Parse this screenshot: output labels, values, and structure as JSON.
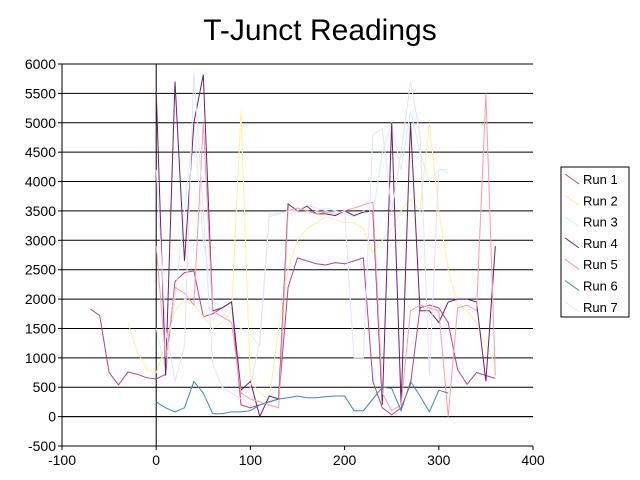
{
  "chart_data": {
    "type": "line",
    "title": "T-Junct Readings",
    "xlabel": "",
    "ylabel": "",
    "xlim": [
      -100,
      400
    ],
    "ylim": [
      -500,
      6000
    ],
    "x_ticks": [
      -100,
      0,
      100,
      200,
      300,
      400
    ],
    "y_ticks": [
      -500,
      0,
      500,
      1000,
      1500,
      2000,
      2500,
      3000,
      3500,
      4000,
      4500,
      5000,
      5500,
      6000
    ],
    "grid": "horizontal",
    "legend_position": "right",
    "series": [
      {
        "name": "Run 1",
        "color": "#c04080",
        "x": [
          -70,
          -60,
          -50,
          -40,
          -30,
          -20,
          -10,
          0,
          10,
          20,
          30,
          40,
          50,
          60,
          70,
          80,
          90,
          100,
          110,
          120,
          130,
          140,
          150,
          160,
          170,
          180,
          190,
          200,
          210,
          220,
          230,
          240,
          250,
          260,
          270,
          280,
          290,
          300,
          310,
          320,
          330,
          340,
          350,
          360
        ],
        "y": [
          1830,
          1720,
          750,
          540,
          760,
          720,
          660,
          640,
          720,
          2300,
          2450,
          2480,
          1700,
          1750,
          1850,
          1950,
          200,
          150,
          200,
          250,
          300,
          2200,
          2700,
          2650,
          2600,
          2580,
          2620,
          2600,
          2650,
          2700,
          600,
          150,
          30,
          150,
          550,
          1850,
          1900,
          1850,
          1600,
          800,
          550,
          750,
          700,
          650
        ]
      },
      {
        "name": "Run 2",
        "color": "#fff0a0",
        "x": [
          -30,
          -20,
          -10,
          0,
          10,
          20,
          30,
          40,
          50,
          60,
          70,
          80,
          90,
          100,
          110,
          120,
          130,
          140,
          150,
          160,
          170,
          180,
          190,
          200,
          210,
          220,
          230,
          240,
          250,
          260,
          270,
          280,
          290,
          300,
          310,
          320,
          330,
          340,
          350,
          360
        ],
        "y": [
          1600,
          1100,
          800,
          750,
          1200,
          1800,
          2000,
          1900,
          1700,
          1500,
          1600,
          1800,
          5200,
          600,
          400,
          300,
          1500,
          2500,
          3000,
          3200,
          3300,
          3400,
          3350,
          3300,
          3300,
          3200,
          2800,
          3000,
          3200,
          3500,
          3700,
          3500,
          5000,
          3500,
          2500,
          1900,
          1800,
          1600,
          1200,
          900
        ]
      },
      {
        "name": "Run 3",
        "color": "#d8f0f8",
        "x": [
          0,
          10,
          20,
          30,
          40,
          50,
          60,
          70,
          80,
          90,
          100,
          110,
          120,
          130,
          140,
          150,
          160,
          170,
          180,
          190,
          200,
          210,
          220,
          230,
          240,
          250,
          260,
          270,
          280,
          290,
          300,
          310
        ],
        "y": [
          1500,
          800,
          2000,
          3500,
          5000,
          3000,
          2000,
          1800,
          1600,
          1500,
          1400,
          1200,
          3400,
          3450,
          3500,
          3480,
          3450,
          3500,
          3550,
          3500,
          3450,
          3400,
          3500,
          3450,
          4500,
          5000,
          4200,
          5200,
          4500,
          4000,
          4200,
          4150
        ]
      },
      {
        "name": "Run 4",
        "color": "#6a2070",
        "x": [
          0,
          10,
          20,
          30,
          40,
          50,
          60,
          70,
          80,
          90,
          100,
          110,
          120,
          130,
          140,
          150,
          160,
          170,
          180,
          190,
          200,
          210,
          220,
          230,
          240,
          250,
          260,
          270,
          280,
          290,
          300,
          310,
          320,
          330,
          340,
          350,
          360
        ],
        "y": [
          5550,
          700,
          5700,
          2650,
          5000,
          5820,
          1800,
          1850,
          1950,
          450,
          600,
          0,
          350,
          300,
          3620,
          3500,
          3580,
          3450,
          3450,
          3420,
          3500,
          3420,
          3480,
          3500,
          200,
          5000,
          200,
          5000,
          1800,
          1800,
          1600,
          1950,
          2000,
          2000,
          1950,
          600,
          2900
        ]
      },
      {
        "name": "Run 5",
        "color": "#ff9aa8",
        "x": [
          0,
          10,
          20,
          30,
          40,
          50,
          60,
          70,
          80,
          90,
          100,
          110,
          120,
          130,
          140,
          150,
          160,
          170,
          180,
          190,
          200,
          210,
          220,
          230,
          240,
          250,
          260,
          270,
          280,
          290,
          300,
          310,
          320,
          330,
          340,
          350,
          360
        ],
        "y": [
          2900,
          1000,
          2200,
          2100,
          1900,
          5000,
          1800,
          1700,
          1600,
          400,
          300,
          250,
          200,
          150,
          3500,
          3550,
          3500,
          3450,
          3480,
          3450,
          3500,
          3550,
          3600,
          3650,
          400,
          100,
          200,
          1800,
          1900,
          1850,
          1800,
          0,
          1850,
          1900,
          1800,
          5500,
          700
        ]
      },
      {
        "name": "Run 6",
        "color": "#3a86c8",
        "x": [
          0,
          10,
          20,
          30,
          40,
          50,
          60,
          70,
          80,
          90,
          100,
          110,
          120,
          130,
          140,
          150,
          160,
          170,
          180,
          190,
          200,
          210,
          220,
          230,
          240,
          250,
          260,
          270,
          280,
          290,
          300,
          310
        ],
        "y": [
          250,
          150,
          80,
          150,
          600,
          400,
          50,
          50,
          80,
          80,
          100,
          200,
          250,
          300,
          320,
          350,
          320,
          320,
          340,
          350,
          350,
          100,
          100,
          300,
          500,
          480,
          100,
          600,
          350,
          80,
          450,
          400
        ]
      },
      {
        "name": "Run 7",
        "color": "#e8e0ff",
        "x": [
          0,
          10,
          20,
          30,
          40,
          50,
          60,
          70,
          80,
          90,
          100,
          110,
          120,
          130,
          140,
          150,
          160,
          170,
          180,
          190,
          200,
          210,
          220,
          230,
          240,
          250,
          260,
          270,
          280,
          290,
          300,
          310
        ],
        "y": [
          4200,
          1500,
          600,
          1200,
          5850,
          3500,
          900,
          500,
          400,
          300,
          500,
          1300,
          3450,
          3450,
          3500,
          3500,
          3600,
          3550,
          3500,
          3450,
          3500,
          1000,
          1000,
          4800,
          4900,
          3500,
          4500,
          5700,
          4800,
          700,
          4200,
          4200
        ]
      }
    ]
  }
}
